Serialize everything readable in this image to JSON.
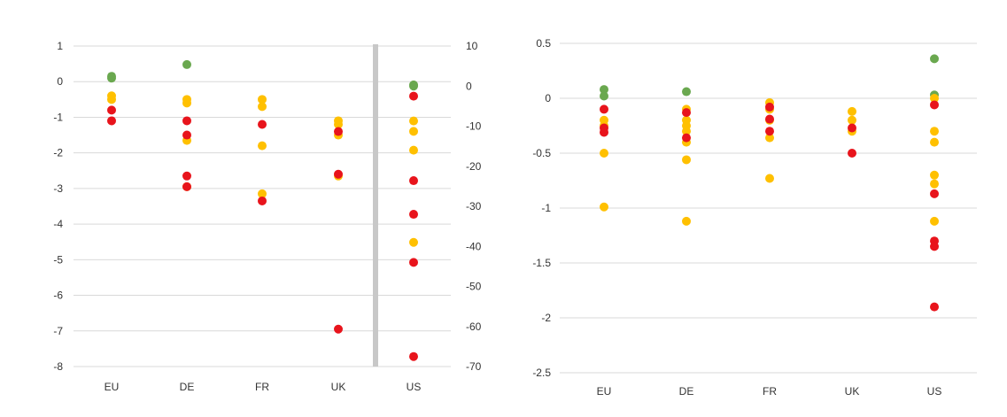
{
  "colors": {
    "green": "#6aa84f",
    "yellow": "#ffc000",
    "red": "#e8141c",
    "grid": "#d9d9d9",
    "divider": "#c8c8c8"
  },
  "chart_data": [
    {
      "type": "scatter",
      "title": "",
      "xlabel": "",
      "ylabel": "",
      "categories": [
        "EU",
        "DE",
        "FR",
        "UK",
        "US"
      ],
      "grid": true,
      "legend": "none",
      "ylim": [
        -8,
        1
      ],
      "y_ticks": [
        "1",
        "0",
        "-1",
        "-2",
        "-3",
        "-4",
        "-5",
        "-6",
        "-7",
        "-8"
      ],
      "secondary_axis": {
        "applies_to": [
          "US"
        ],
        "ylim": [
          -70,
          10
        ],
        "ticks": [
          "10",
          "0",
          "-10",
          "-20",
          "-30",
          "-40",
          "-50",
          "-60",
          "-70"
        ],
        "separator_before": "US"
      },
      "series": [
        {
          "color": "green",
          "points": [
            {
              "category": "EU",
              "y": 0.15
            },
            {
              "category": "EU",
              "y": 0.1
            },
            {
              "category": "DE",
              "y": 0.48
            },
            {
              "category": "US",
              "y": 0.3,
              "axis": "secondary"
            },
            {
              "category": "US",
              "y": 0.0,
              "axis": "secondary"
            }
          ]
        },
        {
          "color": "yellow",
          "points": [
            {
              "category": "EU",
              "y": -0.4
            },
            {
              "category": "EU",
              "y": -0.5
            },
            {
              "category": "DE",
              "y": -0.5
            },
            {
              "category": "DE",
              "y": -0.6
            },
            {
              "category": "DE",
              "y": -1.65
            },
            {
              "category": "DE",
              "y": -2.95
            },
            {
              "category": "FR",
              "y": -0.5
            },
            {
              "category": "FR",
              "y": -0.7
            },
            {
              "category": "FR",
              "y": -1.8
            },
            {
              "category": "FR",
              "y": -3.15
            },
            {
              "category": "UK",
              "y": -1.1
            },
            {
              "category": "UK",
              "y": -1.2
            },
            {
              "category": "UK",
              "y": -1.5
            },
            {
              "category": "UK",
              "y": -2.65
            },
            {
              "category": "US",
              "y": -8.7,
              "axis": "secondary"
            },
            {
              "category": "US",
              "y": -11.3,
              "axis": "secondary"
            },
            {
              "category": "US",
              "y": -16.0,
              "axis": "secondary"
            },
            {
              "category": "US",
              "y": -39.0,
              "axis": "secondary"
            }
          ]
        },
        {
          "color": "red",
          "points": [
            {
              "category": "EU",
              "y": -0.8
            },
            {
              "category": "EU",
              "y": -1.1
            },
            {
              "category": "DE",
              "y": -1.1
            },
            {
              "category": "DE",
              "y": -1.5
            },
            {
              "category": "DE",
              "y": -2.65
            },
            {
              "category": "DE",
              "y": -2.95
            },
            {
              "category": "FR",
              "y": -1.2
            },
            {
              "category": "FR",
              "y": -3.35
            },
            {
              "category": "UK",
              "y": -1.4
            },
            {
              "category": "UK",
              "y": -2.6
            },
            {
              "category": "UK",
              "y": -6.95
            },
            {
              "category": "US",
              "y": -2.5,
              "axis": "secondary"
            },
            {
              "category": "US",
              "y": -23.6,
              "axis": "secondary"
            },
            {
              "category": "US",
              "y": -32.0,
              "axis": "secondary"
            },
            {
              "category": "US",
              "y": -44.0,
              "axis": "secondary"
            },
            {
              "category": "US",
              "y": -67.5,
              "axis": "secondary"
            }
          ]
        }
      ]
    },
    {
      "type": "scatter",
      "title": "",
      "xlabel": "",
      "ylabel": "",
      "categories": [
        "EU",
        "DE",
        "FR",
        "UK",
        "US"
      ],
      "grid": true,
      "legend": "none",
      "ylim": [
        -2.5,
        0.5
      ],
      "y_ticks": [
        "0.5",
        "0",
        "-0.5",
        "-1",
        "-1.5",
        "-2",
        "-2.5"
      ],
      "series": [
        {
          "color": "green",
          "points": [
            {
              "category": "EU",
              "y": 0.08
            },
            {
              "category": "EU",
              "y": 0.02
            },
            {
              "category": "DE",
              "y": 0.06
            },
            {
              "category": "US",
              "y": 0.36
            },
            {
              "category": "US",
              "y": 0.03
            }
          ]
        },
        {
          "color": "yellow",
          "points": [
            {
              "category": "EU",
              "y": -0.2
            },
            {
              "category": "EU",
              "y": -0.25
            },
            {
              "category": "EU",
              "y": -0.5
            },
            {
              "category": "EU",
              "y": -0.99
            },
            {
              "category": "DE",
              "y": -0.1
            },
            {
              "category": "DE",
              "y": -0.2
            },
            {
              "category": "DE",
              "y": -0.25
            },
            {
              "category": "DE",
              "y": -0.3
            },
            {
              "category": "DE",
              "y": -0.4
            },
            {
              "category": "DE",
              "y": -0.56
            },
            {
              "category": "DE",
              "y": -1.12
            },
            {
              "category": "FR",
              "y": -0.04
            },
            {
              "category": "FR",
              "y": -0.1
            },
            {
              "category": "FR",
              "y": -0.2
            },
            {
              "category": "FR",
              "y": -0.36
            },
            {
              "category": "FR",
              "y": -0.73
            },
            {
              "category": "UK",
              "y": -0.12
            },
            {
              "category": "UK",
              "y": -0.2
            },
            {
              "category": "UK",
              "y": -0.3
            },
            {
              "category": "US",
              "y": 0.0
            },
            {
              "category": "US",
              "y": -0.3
            },
            {
              "category": "US",
              "y": -0.4
            },
            {
              "category": "US",
              "y": -0.7
            },
            {
              "category": "US",
              "y": -0.78
            },
            {
              "category": "US",
              "y": -1.12
            }
          ]
        },
        {
          "color": "red",
          "points": [
            {
              "category": "EU",
              "y": -0.1
            },
            {
              "category": "EU",
              "y": -0.27
            },
            {
              "category": "EU",
              "y": -0.31
            },
            {
              "category": "DE",
              "y": -0.13
            },
            {
              "category": "DE",
              "y": -0.36
            },
            {
              "category": "FR",
              "y": -0.08
            },
            {
              "category": "FR",
              "y": -0.19
            },
            {
              "category": "FR",
              "y": -0.3
            },
            {
              "category": "UK",
              "y": -0.27
            },
            {
              "category": "UK",
              "y": -0.5
            },
            {
              "category": "US",
              "y": -0.06
            },
            {
              "category": "US",
              "y": -0.87
            },
            {
              "category": "US",
              "y": -1.3
            },
            {
              "category": "US",
              "y": -1.35
            },
            {
              "category": "US",
              "y": -1.9
            }
          ]
        }
      ]
    }
  ]
}
